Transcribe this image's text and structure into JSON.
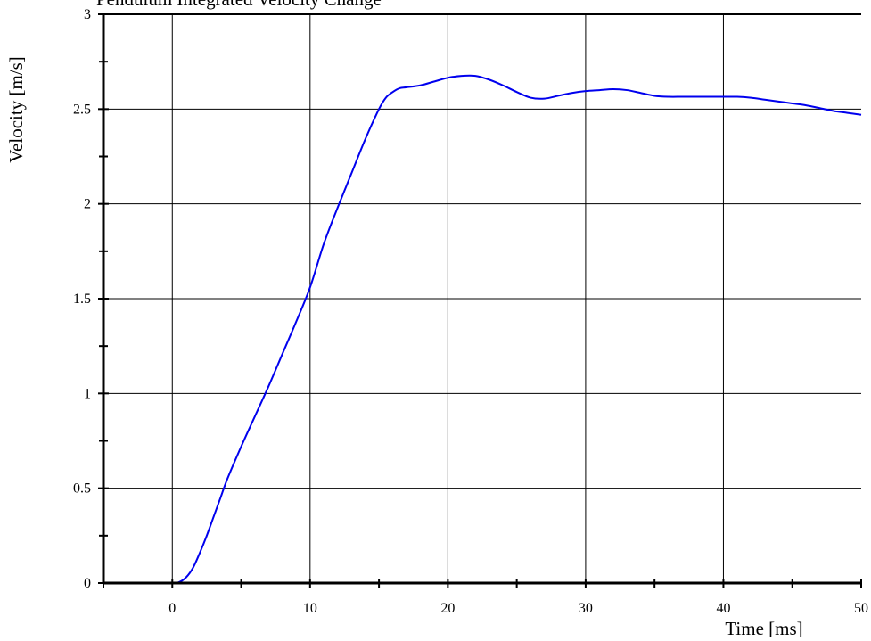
{
  "chart_data": {
    "type": "line",
    "title": "Pendulum Integrated Velocity Change",
    "xlabel": "Time [ms]",
    "ylabel": "Velocity [m/s]",
    "xlim": [
      -5,
      50
    ],
    "ylim": [
      0,
      3
    ],
    "xticks": [
      0,
      10,
      20,
      30,
      40,
      50
    ],
    "yticks": [
      0,
      0.5,
      1,
      1.5,
      2,
      2.5,
      3
    ],
    "xtick_labels": [
      "0",
      "10",
      "20",
      "30",
      "40",
      "50"
    ],
    "ytick_labels": [
      "0",
      "0.5",
      "1",
      "1.5",
      "2",
      "2.5",
      "3"
    ],
    "grid": true,
    "series": [
      {
        "color": "#0000ee",
        "x": [
          0,
          0.5,
          1,
          1.5,
          2,
          2.5,
          3,
          3.5,
          4,
          5,
          6,
          7,
          8,
          9,
          10,
          11,
          12,
          13,
          14,
          15,
          15.5,
          16,
          16.5,
          17,
          18,
          19,
          20,
          21,
          22,
          23,
          24,
          25,
          26,
          27,
          28,
          29,
          30,
          31,
          32,
          33,
          34,
          35,
          36,
          37,
          38,
          39,
          40,
          41,
          42,
          43,
          44,
          45,
          46,
          47,
          48,
          49,
          50
        ],
        "y": [
          0,
          0.005,
          0.03,
          0.08,
          0.16,
          0.25,
          0.35,
          0.45,
          0.55,
          0.72,
          0.88,
          1.04,
          1.21,
          1.38,
          1.56,
          1.79,
          1.98,
          2.16,
          2.34,
          2.5,
          2.56,
          2.59,
          2.61,
          2.615,
          2.625,
          2.645,
          2.665,
          2.675,
          2.675,
          2.655,
          2.625,
          2.59,
          2.56,
          2.555,
          2.57,
          2.585,
          2.595,
          2.6,
          2.605,
          2.6,
          2.585,
          2.57,
          2.565,
          2.565,
          2.565,
          2.565,
          2.565,
          2.565,
          2.56,
          2.55,
          2.54,
          2.53,
          2.52,
          2.505,
          2.49,
          2.48,
          2.47
        ]
      }
    ]
  }
}
